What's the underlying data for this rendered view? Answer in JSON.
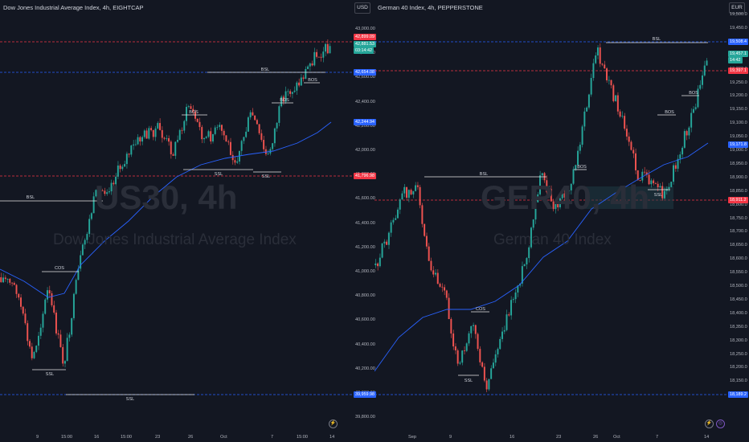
{
  "left": {
    "title": "Dow Jones Industrial Average Index, 4h, EIGHTCAP",
    "currency": "USD",
    "watermark_symbol": "US30, 4h",
    "watermark_name": "Dow Jones Industrial Average Index",
    "price_axis": [
      "43,000.00",
      "42,800.00",
      "42,600.00",
      "42,400.00",
      "42,200.00",
      "42,000.00",
      "41,800.00",
      "41,600.00",
      "41,400.00",
      "41,200.00",
      "41,000.00",
      "40,800.00",
      "40,600.00",
      "40,400.00",
      "40,200.00",
      "40,000.00",
      "39,800.00"
    ],
    "time_axis": [
      "9",
      "15:00",
      "16",
      "15:00",
      "23",
      "26",
      "Oct",
      "7",
      "15:00",
      "14"
    ],
    "price_tags": {
      "top_red": "42,899.09",
      "current_top": "42,881.53",
      "current_time": "03:14:42",
      "bsl_blue": "42,654.08",
      "ma_blue": "42,244.94",
      "red_level": "41,796.98",
      "ssl_blue": "39,959.98"
    },
    "labels": {
      "bsl_top": "BSL",
      "bos_1": "BOS",
      "bos_2": "BOS",
      "bos_3": "BOS",
      "ssl_1": "SSL",
      "ssl_2": "SSL",
      "bsl_left": "BSL",
      "cos": "COS",
      "ssl_low": "SSL",
      "ssl_bottom": "SSL"
    }
  },
  "right": {
    "title": "German 40 Index, 4h, PEPPERSTONE",
    "currency": "EUR",
    "watermark_symbol": "GER40, 4h",
    "watermark_name": "German 40 Index",
    "price_axis": [
      "19,500.0",
      "19,450.0",
      "19,400.0",
      "19,350.0",
      "19,300.0",
      "19,250.0",
      "19,200.0",
      "19,150.0",
      "19,100.0",
      "19,050.0",
      "19,000.0",
      "18,950.0",
      "18,900.0",
      "18,850.0",
      "18,800.0",
      "18,750.0",
      "18,700.0",
      "18,650.0",
      "18,600.0",
      "18,550.0",
      "18,500.0",
      "18,450.0",
      "18,400.0",
      "18,350.0",
      "18,300.0",
      "18,250.0",
      "18,200.0",
      "18,150.0"
    ],
    "time_axis": [
      "Sep",
      "9",
      "16",
      "23",
      "26",
      "Oct",
      "7",
      "14"
    ],
    "price_tags": {
      "bsl_blue": "19,508.4",
      "current_top": "19,457.1",
      "current_time": "14:42",
      "red_level": "19,397.1",
      "ma_blue": "19,171.8",
      "red_level_2": "18,911.2",
      "ssl_blue": "18,189.2"
    },
    "labels": {
      "bsl_top": "BSL",
      "bsl_mid": "BSL",
      "bos_1": "BOS",
      "bos_2": "BOS",
      "ssl_mid": "SSL",
      "cos": "COS",
      "ssl_low": "SSL"
    }
  },
  "colors": {
    "background": "#131722",
    "up": "#26a69a",
    "down": "#ef5350",
    "ma": "#2962ff",
    "red_line": "#f23645",
    "blue_line": "#2962ff"
  }
}
